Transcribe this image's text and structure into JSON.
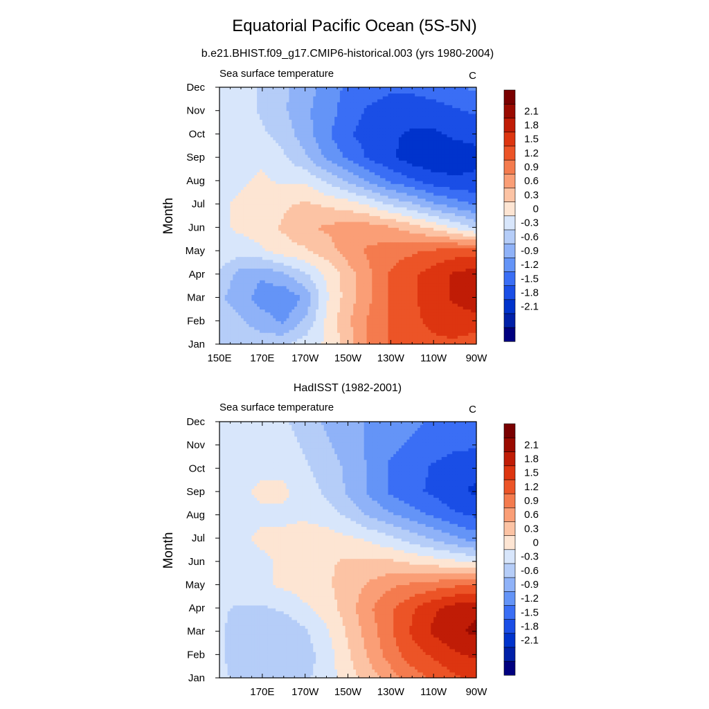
{
  "figure": {
    "title": "Equatorial Pacific Ocean (5S-5N)",
    "colorbar_colors": [
      "#00007f",
      "#0020a8",
      "#0033cc",
      "#1a4ee6",
      "#3a6ef5",
      "#6494f7",
      "#8fb2f8",
      "#b5cdf8",
      "#d8e6fb",
      "#fde5d3",
      "#fcc3a4",
      "#fa9e76",
      "#f47b4e",
      "#ec5427",
      "#dd3510",
      "#c01c06",
      "#9a0a00",
      "#7a0000"
    ],
    "colorbar_labels": [
      "2.1",
      "1.8",
      "1.5",
      "1.2",
      "0.9",
      "0.6",
      "0.3",
      "0",
      "-0.3",
      "-0.6",
      "-0.9",
      "-1.2",
      "-1.5",
      "-1.8",
      "-2.1"
    ],
    "scale_min": -2.25,
    "scale_step": 0.3
  },
  "chart_data": [
    {
      "type": "heatmap",
      "panel_title": "b.e21.BHIST.f09_g17.CMIP6-historical.003 (yrs 1980-2004)",
      "subtitle_left": "Sea surface temperature",
      "subtitle_right": "C",
      "xlabel": "",
      "ylabel": "Month",
      "x_tick_labels": [
        "150E",
        "170E",
        "170W",
        "150W",
        "130W",
        "110W",
        "90W"
      ],
      "y_tick_labels": [
        "Jan",
        "Feb",
        "Mar",
        "Apr",
        "May",
        "Jun",
        "Jul",
        "Aug",
        "Sep",
        "Oct",
        "Nov",
        "Dec"
      ],
      "xlim": [
        150,
        270
      ],
      "grid": [
        [
          -0.2,
          -0.3,
          -0.3,
          -0.2,
          0.0,
          0.2,
          0.6,
          1.1,
          1.4,
          1.6,
          1.6,
          1.6,
          1.5
        ],
        [
          -0.3,
          -0.4,
          -0.6,
          -0.8,
          -0.4,
          0.2,
          0.7,
          1.1,
          1.4,
          1.6,
          1.7,
          1.8,
          1.8
        ],
        [
          -0.4,
          -0.6,
          -0.9,
          -1.0,
          -0.7,
          0.1,
          0.6,
          1.0,
          1.4,
          1.6,
          1.8,
          2.0,
          2.2
        ],
        [
          -0.2,
          -0.6,
          -0.7,
          -0.5,
          -0.2,
          0.2,
          0.6,
          1.0,
          1.4,
          1.6,
          1.8,
          2.0,
          2.1
        ],
        [
          0.1,
          0.0,
          0.1,
          0.3,
          0.4,
          0.6,
          0.9,
          1.1,
          1.2,
          1.3,
          1.4,
          1.5,
          1.5
        ],
        [
          0.1,
          0.2,
          0.3,
          0.5,
          0.7,
          0.8,
          0.9,
          0.9,
          0.8,
          0.6,
          0.4,
          0.1,
          -0.2
        ],
        [
          0.1,
          0.2,
          0.3,
          0.4,
          0.5,
          0.4,
          0.3,
          0.1,
          -0.2,
          -0.4,
          -0.7,
          -0.9,
          -1.1
        ],
        [
          0.0,
          0.1,
          0.2,
          0.1,
          0.1,
          -0.2,
          -0.5,
          -0.8,
          -1.1,
          -1.3,
          -1.5,
          -1.6,
          -1.6
        ],
        [
          -0.1,
          0.0,
          0.1,
          -0.1,
          -0.4,
          -0.8,
          -1.1,
          -1.4,
          -1.6,
          -1.8,
          -1.9,
          -1.8,
          -1.7
        ],
        [
          0.0,
          0.0,
          -0.1,
          -0.3,
          -0.6,
          -1.0,
          -1.3,
          -1.5,
          -1.6,
          -1.7,
          -1.7,
          -1.6,
          -1.6
        ],
        [
          0.1,
          0.0,
          -0.2,
          -0.4,
          -0.7,
          -0.9,
          -1.2,
          -1.4,
          -1.5,
          -1.5,
          -1.5,
          -1.4,
          -1.3
        ],
        [
          0.1,
          0.0,
          -0.2,
          -0.4,
          -0.6,
          -0.9,
          -1.1,
          -1.2,
          -1.3,
          -1.3,
          -1.2,
          -1.1,
          -1.0
        ]
      ]
    },
    {
      "type": "heatmap",
      "panel_title": "HadISST (1982-2001)",
      "subtitle_left": "Sea surface temperature",
      "subtitle_right": "C",
      "xlabel": "",
      "ylabel": "Month",
      "x_tick_labels": [
        "",
        "170E",
        "170W",
        "150W",
        "130W",
        "110W",
        "90W"
      ],
      "y_tick_labels": [
        "Jan",
        "Feb",
        "Mar",
        "Apr",
        "May",
        "Jun",
        "Jul",
        "Aug",
        "Sep",
        "Oct",
        "Nov",
        "Dec"
      ],
      "xlim": [
        150,
        270
      ],
      "grid": [
        [
          -0.1,
          -0.2,
          -0.3,
          -0.3,
          -0.2,
          0.0,
          0.3,
          0.6,
          0.9,
          1.2,
          1.4,
          1.6,
          1.7
        ],
        [
          -0.1,
          -0.3,
          -0.4,
          -0.4,
          -0.3,
          0.0,
          0.4,
          0.8,
          1.2,
          1.5,
          1.7,
          1.9,
          2.0
        ],
        [
          -0.1,
          -0.3,
          -0.4,
          -0.4,
          -0.2,
          0.1,
          0.5,
          0.9,
          1.3,
          1.7,
          2.0,
          2.2,
          2.3
        ],
        [
          -0.1,
          -0.2,
          -0.2,
          -0.1,
          0.1,
          0.3,
          0.6,
          1.0,
          1.3,
          1.6,
          1.9,
          2.1,
          2.2
        ],
        [
          0.0,
          0.1,
          0.1,
          0.2,
          0.3,
          0.4,
          0.6,
          0.8,
          1.0,
          1.1,
          1.2,
          1.3,
          1.4
        ],
        [
          0.1,
          0.1,
          0.1,
          0.2,
          0.3,
          0.4,
          0.5,
          0.5,
          0.5,
          0.4,
          0.3,
          0.2,
          0.1
        ],
        [
          0.0,
          0.1,
          0.2,
          0.2,
          0.3,
          0.3,
          0.2,
          0.1,
          -0.1,
          -0.3,
          -0.5,
          -0.7,
          -0.9
        ],
        [
          -0.1,
          0.0,
          0.1,
          0.1,
          0.1,
          0.0,
          -0.2,
          -0.5,
          -0.7,
          -0.9,
          -1.1,
          -1.3,
          -1.4
        ],
        [
          -0.1,
          0.1,
          0.2,
          0.2,
          0.0,
          -0.2,
          -0.5,
          -0.8,
          -1.1,
          -1.3,
          -1.4,
          -1.6,
          -1.7
        ],
        [
          0.0,
          0.1,
          0.1,
          0.1,
          -0.1,
          -0.3,
          -0.5,
          -0.8,
          -1.1,
          -1.2,
          -1.4,
          -1.5,
          -1.6
        ],
        [
          0.0,
          0.1,
          0.1,
          0.0,
          -0.2,
          -0.4,
          -0.6,
          -0.8,
          -1.0,
          -1.1,
          -1.2,
          -1.3,
          -1.3
        ],
        [
          0.0,
          0.1,
          0.0,
          -0.1,
          -0.3,
          -0.5,
          -0.6,
          -0.8,
          -0.9,
          -1.0,
          -1.1,
          -1.1,
          -1.1
        ]
      ]
    }
  ]
}
